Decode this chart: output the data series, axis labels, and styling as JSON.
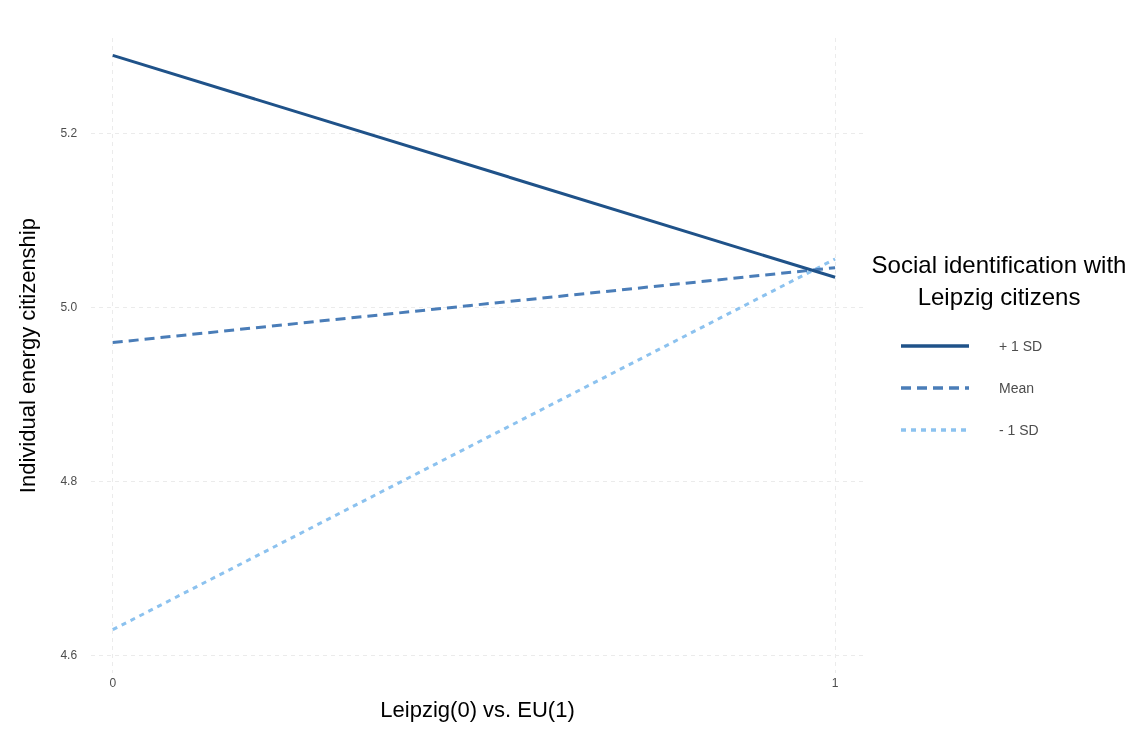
{
  "chart_data": {
    "type": "line",
    "xlabel": "Leipzig(0) vs. EU(1)",
    "ylabel": "Individual energy citizenship",
    "legend_title": "Social identification with Leipzig citizens",
    "x": [
      0,
      1
    ],
    "series": [
      {
        "name": "+ 1 SD",
        "color": "#1f5289",
        "values": [
          5.29,
          5.035
        ],
        "line_style": "solid"
      },
      {
        "name": "Mean",
        "color": "#4a7db8",
        "values": [
          4.96,
          5.046
        ],
        "line_style": "dashed"
      },
      {
        "name": "- 1 SD",
        "color": "#8cc2ef",
        "values": [
          4.63,
          5.056
        ],
        "line_style": "dotted"
      }
    ],
    "xlim": [
      -0.03,
      1.04
    ],
    "xticks": [
      0,
      1
    ],
    "ylim": [
      4.58,
      5.31
    ],
    "yticks": [
      4.6,
      4.8,
      {
        "value": 5,
        "label": "5.0"
      },
      5.2
    ],
    "grid": true,
    "legend": "right",
    "marker": "none"
  }
}
